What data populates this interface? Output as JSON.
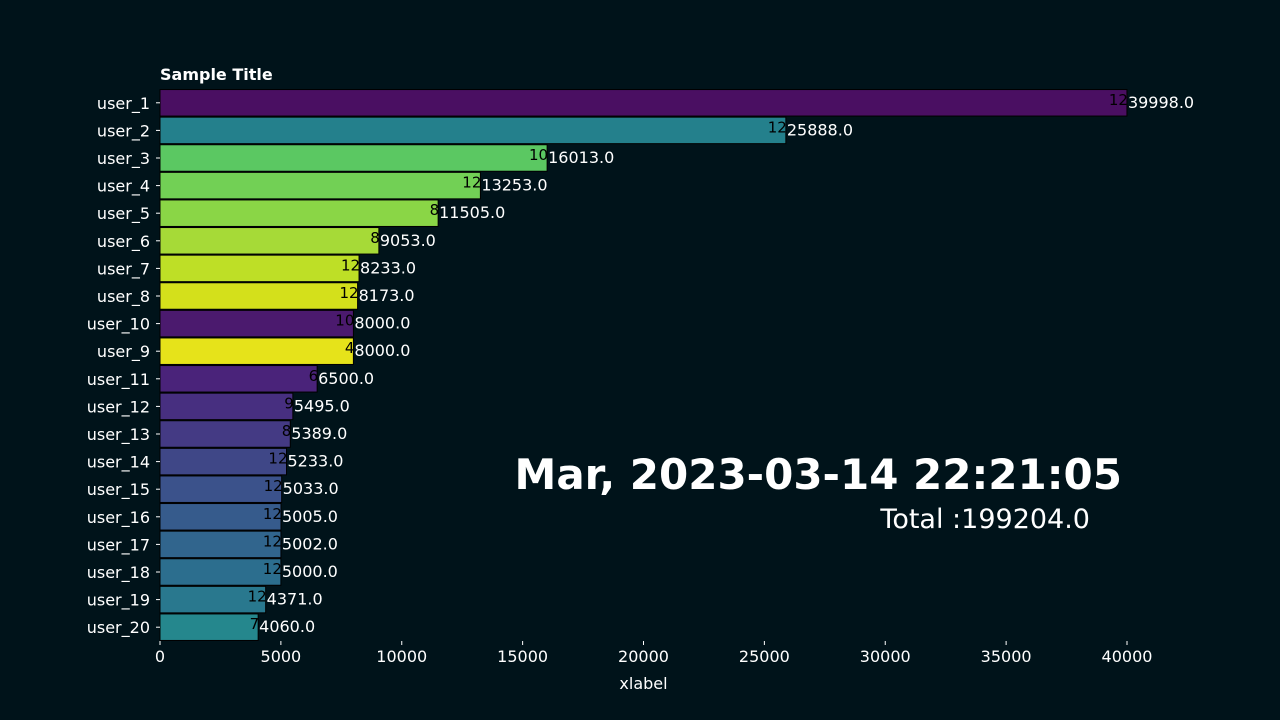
{
  "chart_data": {
    "type": "bar",
    "orientation": "horizontal",
    "title": "Sample Title",
    "xlabel": "xlabel",
    "date_label": "Mar, 2023-03-14 22:21:05",
    "total_label": "Total :199204.0",
    "xlim": [
      0,
      40000
    ],
    "xticks": [
      0,
      5000,
      10000,
      15000,
      20000,
      25000,
      30000,
      35000,
      40000
    ],
    "grid": false,
    "bars": [
      {
        "label": "user_1",
        "value": 39998.0,
        "value_label": "39998.0",
        "count": "12",
        "color": "#4a0f62"
      },
      {
        "label": "user_2",
        "value": 25888.0,
        "value_label": "25888.0",
        "count": "12",
        "color": "#24808c"
      },
      {
        "label": "user_3",
        "value": 16013.0,
        "value_label": "16013.0",
        "count": "10",
        "color": "#5bc862"
      },
      {
        "label": "user_4",
        "value": 13253.0,
        "value_label": "13253.0",
        "count": "12",
        "color": "#72d055"
      },
      {
        "label": "user_5",
        "value": 11505.0,
        "value_label": "11505.0",
        "count": "8",
        "color": "#8ad646"
      },
      {
        "label": "user_6",
        "value": 9053.0,
        "value_label": "9053.0",
        "count": "8",
        "color": "#a6da37"
      },
      {
        "label": "user_7",
        "value": 8233.0,
        "value_label": "8233.0",
        "count": "12",
        "color": "#bedf26"
      },
      {
        "label": "user_8",
        "value": 8173.0,
        "value_label": "8173.0",
        "count": "12",
        "color": "#d4e01b"
      },
      {
        "label": "user_10",
        "value": 8000.0,
        "value_label": "8000.0",
        "count": "10",
        "color": "#4b1a6e"
      },
      {
        "label": "user_9",
        "value": 8000.0,
        "value_label": "8000.0",
        "count": "4",
        "color": "#e6e31a"
      },
      {
        "label": "user_11",
        "value": 6500.0,
        "value_label": "6500.0",
        "count": "6",
        "color": "#4a237a"
      },
      {
        "label": "user_12",
        "value": 5495.0,
        "value_label": "5495.0",
        "count": "9",
        "color": "#472f80"
      },
      {
        "label": "user_13",
        "value": 5389.0,
        "value_label": "5389.0",
        "count": "8",
        "color": "#443a84"
      },
      {
        "label": "user_14",
        "value": 5233.0,
        "value_label": "5233.0",
        "count": "12",
        "color": "#3f4787"
      },
      {
        "label": "user_15",
        "value": 5033.0,
        "value_label": "5033.0",
        "count": "12",
        "color": "#3b528b"
      },
      {
        "label": "user_16",
        "value": 5005.0,
        "value_label": "5005.0",
        "count": "12",
        "color": "#365b8c"
      },
      {
        "label": "user_17",
        "value": 5002.0,
        "value_label": "5002.0",
        "count": "12",
        "color": "#31658d"
      },
      {
        "label": "user_18",
        "value": 5000.0,
        "value_label": "5000.0",
        "count": "12",
        "color": "#2c6e8e"
      },
      {
        "label": "user_19",
        "value": 4371.0,
        "value_label": "4371.0",
        "count": "12",
        "color": "#29788e"
      },
      {
        "label": "user_20",
        "value": 4060.0,
        "value_label": "4060.0",
        "count": "7",
        "color": "#25878d"
      }
    ]
  },
  "colors": {
    "background": "#00131a",
    "text": "#ffffff",
    "count_text": "#000000",
    "bar_edge": "#000000"
  }
}
